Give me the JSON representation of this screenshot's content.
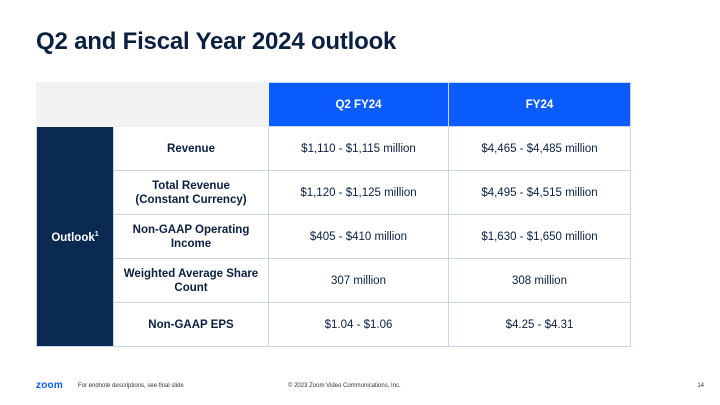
{
  "title": "Q2 and Fiscal Year 2024 outlook",
  "table": {
    "columns": [
      "Q2 FY24",
      "FY24"
    ],
    "group_label": "Outlook",
    "group_sup": "1",
    "rows": [
      {
        "metric": [
          "Revenue"
        ],
        "q2": "$1,110 - $1,115 million",
        "fy": "$4,465 - $4,485 million"
      },
      {
        "metric": [
          "Total Revenue",
          "(Constant Currency)"
        ],
        "q2": "$1,120 - $1,125 million",
        "fy": "$4,495 - $4,515 million"
      },
      {
        "metric": [
          "Non-GAAP Operating",
          "Income"
        ],
        "q2": "$405 - $410 million",
        "fy": "$1,630 - $1,650 million"
      },
      {
        "metric": [
          "Weighted Average Share",
          "Count"
        ],
        "q2": "307 million",
        "fy": "308 million"
      },
      {
        "metric": [
          "Non-GAAP EPS"
        ],
        "q2": "$1.04 - $1.06",
        "fy": "$4.25 - $4.31"
      }
    ]
  },
  "footer": {
    "logo": "zoom",
    "note": "For endnote descriptions, see final slide",
    "copyright": "© 2023 Zoom Video Communications, Inc.",
    "page": "14"
  },
  "colors": {
    "header_blue": "#0b5cff",
    "group_navy": "#0b2a52",
    "title_navy": "#0b1f3f",
    "border": "#c9d3ec"
  }
}
